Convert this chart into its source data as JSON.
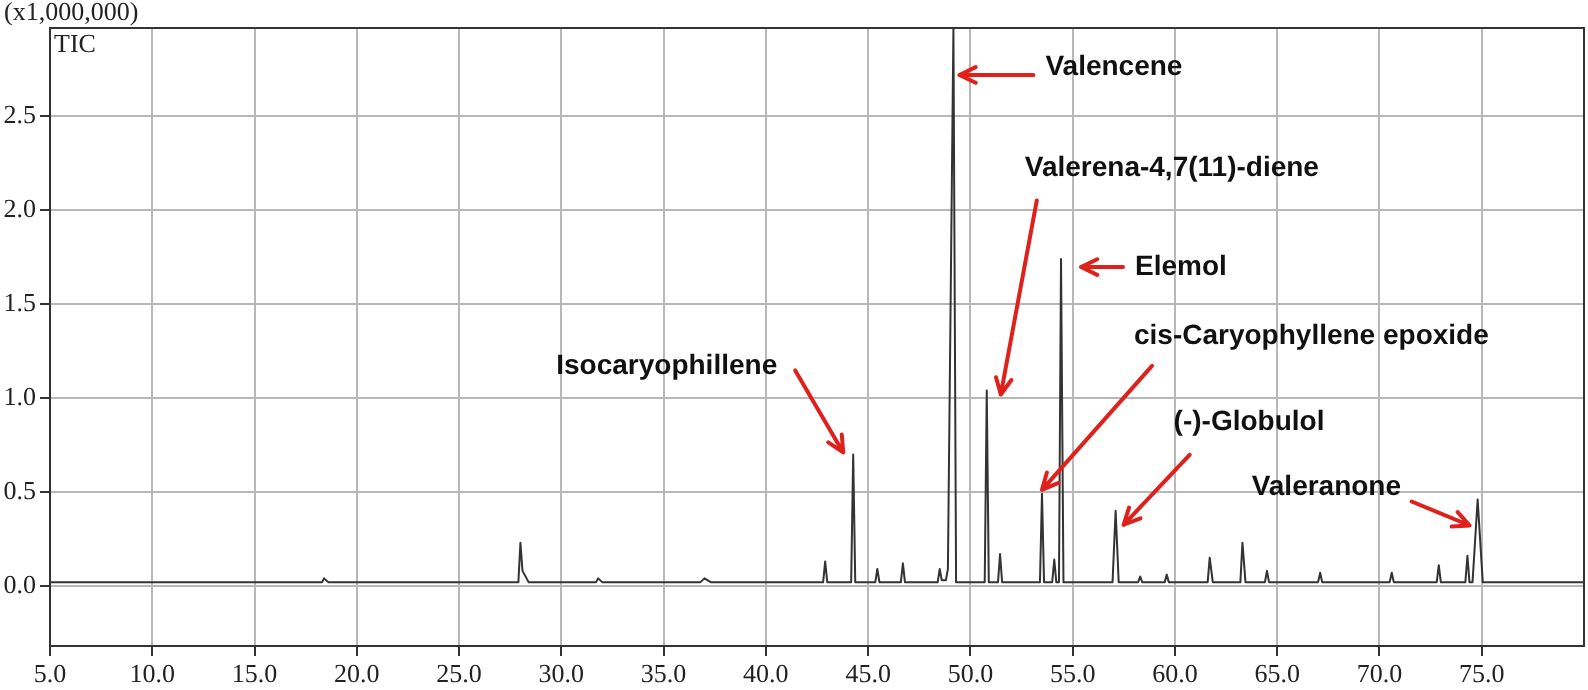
{
  "chart_data": {
    "type": "line",
    "ylabel": "(x1,000,000)",
    "color": "#333333",
    "marker": "none",
    "line_style": "solid",
    "grid": true,
    "legend": false,
    "xlim": [
      5,
      80
    ],
    "ylim": [
      -0.32,
      2.97
    ],
    "xticks": [
      {
        "value": 5,
        "label": "5.0"
      },
      {
        "value": 10,
        "label": "10.0"
      },
      {
        "value": 15,
        "label": "15.0"
      },
      {
        "value": 20,
        "label": "20.0"
      },
      {
        "value": 25,
        "label": "25.0"
      },
      {
        "value": 30,
        "label": "30.0"
      },
      {
        "value": 35,
        "label": "35.0"
      },
      {
        "value": 40,
        "label": "40.0"
      },
      {
        "value": 45,
        "label": "45.0"
      },
      {
        "value": 50,
        "label": "50.0"
      },
      {
        "value": 55,
        "label": "55.0"
      },
      {
        "value": 60,
        "label": "60.0"
      },
      {
        "value": 65,
        "label": "65.0"
      },
      {
        "value": 70,
        "label": "70.0"
      },
      {
        "value": 75,
        "label": "75.0"
      }
    ],
    "yticks": [
      {
        "value": 0,
        "label": "0.0"
      },
      {
        "value": 0.5,
        "label": "0.5"
      },
      {
        "value": 1,
        "label": "1.0"
      },
      {
        "value": 1.5,
        "label": "1.5"
      },
      {
        "value": 2,
        "label": "2.0"
      },
      {
        "value": 2.5,
        "label": "2.5"
      }
    ],
    "x": [
      5,
      18.3,
      18.4,
      18.6,
      27.9,
      28.0,
      28.1,
      28.4,
      31.7,
      31.8,
      32.0,
      36.8,
      37.0,
      37.3,
      42.8,
      42.9,
      43.0,
      44.17,
      44.27,
      44.37,
      45.35,
      45.45,
      45.55,
      46.6,
      46.7,
      46.8,
      48.4,
      48.5,
      48.6,
      48.8,
      48.9,
      49.17,
      49.3,
      50.7,
      50.8,
      50.9,
      51.35,
      51.45,
      51.55,
      53.4,
      53.5,
      53.6,
      54.0,
      54.1,
      54.2,
      54.33,
      54.43,
      54.55,
      56.95,
      57.1,
      57.25,
      58.2,
      58.3,
      58.4,
      59.5,
      59.6,
      59.7,
      61.6,
      61.7,
      61.85,
      63.2,
      63.3,
      63.45,
      64.4,
      64.5,
      64.6,
      67.0,
      67.1,
      67.2,
      70.5,
      70.6,
      70.7,
      72.8,
      72.9,
      73.0,
      74.2,
      74.3,
      74.4,
      74.55,
      74.8,
      75.05,
      80
    ],
    "values": [
      0.02,
      0.02,
      0.04,
      0.02,
      0.02,
      0.23,
      0.08,
      0.02,
      0.02,
      0.04,
      0.02,
      0.02,
      0.04,
      0.02,
      0.02,
      0.13,
      0.02,
      0.02,
      0.7,
      0.02,
      0.02,
      0.09,
      0.02,
      0.02,
      0.12,
      0.02,
      0.02,
      0.09,
      0.03,
      0.03,
      0.09,
      2.97,
      0.02,
      0.02,
      1.04,
      0.02,
      0.02,
      0.17,
      0.02,
      0.02,
      0.49,
      0.02,
      0.02,
      0.14,
      0.02,
      0.02,
      1.74,
      0.02,
      0.02,
      0.4,
      0.02,
      0.02,
      0.05,
      0.02,
      0.02,
      0.06,
      0.02,
      0.02,
      0.15,
      0.02,
      0.02,
      0.23,
      0.02,
      0.02,
      0.08,
      0.02,
      0.02,
      0.07,
      0.02,
      0.02,
      0.07,
      0.02,
      0.02,
      0.11,
      0.02,
      0.02,
      0.16,
      0.02,
      0.02,
      0.46,
      0.02,
      0.02
    ],
    "annotations": [
      "TIC",
      {
        "text": "Isocaryophillene",
        "x": 44.27,
        "y": 0.7
      },
      {
        "text": "Valencene",
        "x": 49.17,
        "y": 2.72
      },
      {
        "text": "Valerena-4,7(11)-diene",
        "x": 50.8,
        "y": 1.04
      },
      {
        "text": "Elemol",
        "x": 54.43,
        "y": 1.74
      },
      {
        "text": "cis-Caryophyllene epoxide",
        "x": 53.5,
        "y": 0.49
      },
      {
        "text": "(-)-Globulol",
        "x": 57.1,
        "y": 0.4
      },
      {
        "text": "Valeranone",
        "x": 74.8,
        "y": 0.46
      }
    ]
  }
}
